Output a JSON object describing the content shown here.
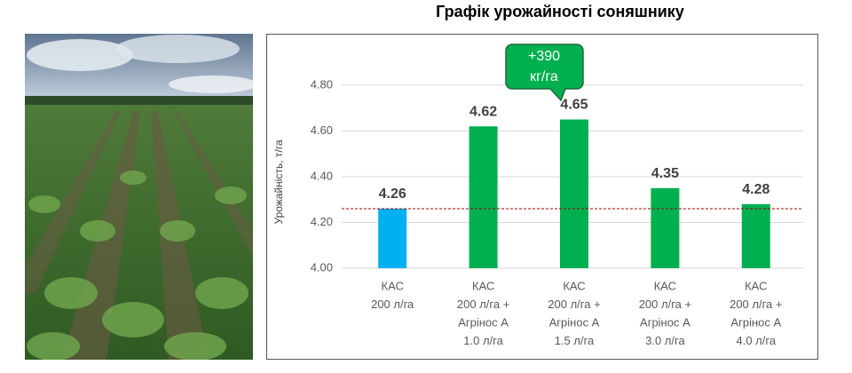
{
  "chart_data": {
    "type": "bar",
    "title": "Графік урожайності соняшнику",
    "y_label": "Урожайність, т/га",
    "categories": [
      [
        "КАС",
        "200 л/га"
      ],
      [
        "КАС",
        "200 л/га +",
        "Агрінос А",
        "1.0 л/га"
      ],
      [
        "КАС",
        "200 л/га +",
        "Агрінос А",
        "1.5 л/га"
      ],
      [
        "КАС",
        "200 л/га +",
        "Агрінос А",
        "3.0 л/га"
      ],
      [
        "КАС",
        "200 л/га +",
        "Агрінос А",
        "4.0 л/га"
      ]
    ],
    "values": [
      4.26,
      4.62,
      4.65,
      4.35,
      4.28
    ],
    "colors": [
      "#00b0f0",
      "#00b050",
      "#00b050",
      "#00b050",
      "#00b050"
    ],
    "reference_line": 4.26,
    "reference_color": "#a00000",
    "annotation": [
      "+390",
      "кг/га"
    ],
    "ylim": [
      4.0,
      4.85
    ],
    "yticks": [
      {
        "value": 4.0,
        "label": "4.00"
      },
      {
        "value": 4.2,
        "label": "4.20"
      },
      {
        "value": 4.4,
        "label": "4.40"
      },
      {
        "value": 4.6,
        "label": "4.60"
      },
      {
        "value": 4.8,
        "label": "4.80"
      }
    ],
    "grid": true
  }
}
